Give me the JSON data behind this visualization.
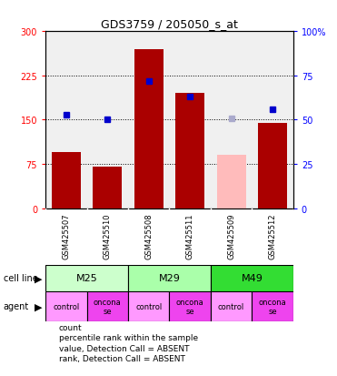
{
  "title": "GDS3759 / 205050_s_at",
  "samples": [
    "GSM425507",
    "GSM425510",
    "GSM425508",
    "GSM425511",
    "GSM425509",
    "GSM425512"
  ],
  "counts": [
    95,
    70,
    270,
    195,
    90,
    145
  ],
  "percentile_ranks": [
    53,
    50,
    72,
    63,
    51,
    56
  ],
  "absent_flags": [
    false,
    false,
    false,
    false,
    true,
    false
  ],
  "cell_lines": [
    {
      "label": "M25",
      "start": 0,
      "end": 2,
      "color": "#ccffcc"
    },
    {
      "label": "M29",
      "start": 2,
      "end": 4,
      "color": "#aaffaa"
    },
    {
      "label": "M49",
      "start": 4,
      "end": 6,
      "color": "#33dd33"
    }
  ],
  "agents": [
    "control",
    "onconase",
    "control",
    "onconase",
    "control",
    "onconase"
  ],
  "agent_color_control": "#ff99ff",
  "agent_color_onconase": "#ee44ee",
  "ylim_left": [
    0,
    300
  ],
  "ylim_right": [
    0,
    100
  ],
  "yticks_left": [
    0,
    75,
    150,
    225,
    300
  ],
  "yticks_right": [
    0,
    25,
    50,
    75,
    100
  ],
  "bar_color": "#aa0000",
  "bar_color_absent": "#ffbbbb",
  "rank_color": "#0000cc",
  "rank_color_absent": "#aaaacc",
  "sample_bg": "#cccccc",
  "legend_items": [
    {
      "label": "count",
      "color": "#cc0000"
    },
    {
      "label": "percentile rank within the sample",
      "color": "#0000cc"
    },
    {
      "label": "value, Detection Call = ABSENT",
      "color": "#ffbbbb"
    },
    {
      "label": "rank, Detection Call = ABSENT",
      "color": "#aaaacc"
    }
  ]
}
